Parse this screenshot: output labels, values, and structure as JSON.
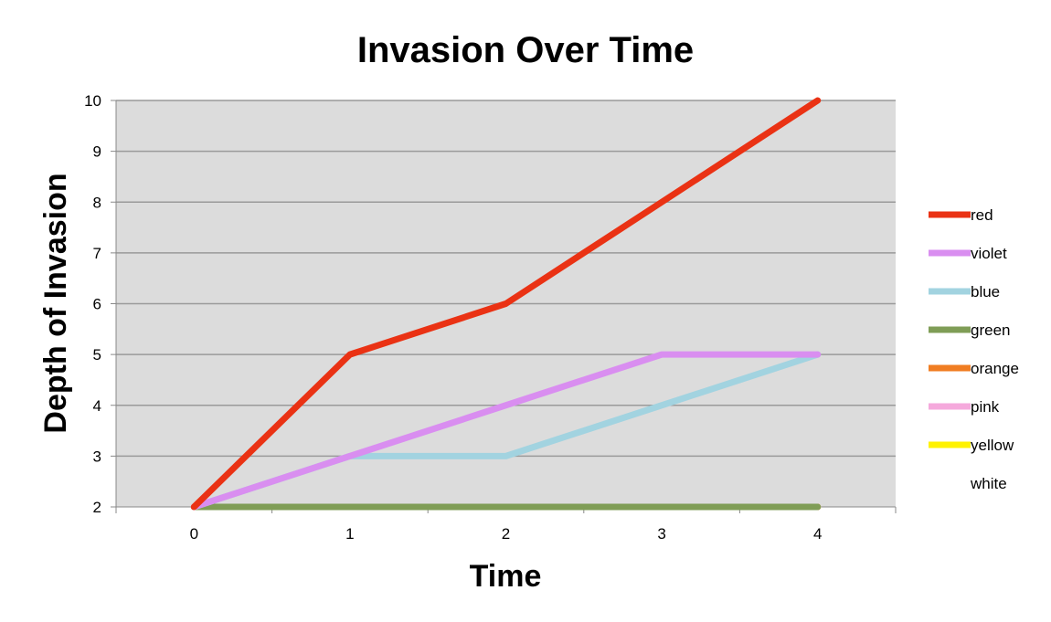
{
  "chart_data": {
    "type": "line",
    "title": "Invasion Over Time",
    "xlabel": "Time",
    "ylabel": "Depth of Invasion",
    "x": [
      0,
      1,
      2,
      3,
      4
    ],
    "x_ticks": [
      "0",
      "1",
      "2",
      "3",
      "4"
    ],
    "ylim": [
      2,
      10
    ],
    "y_ticks": [
      "2",
      "3",
      "4",
      "5",
      "6",
      "7",
      "8",
      "9",
      "10"
    ],
    "grid": true,
    "plot_background": "#dcdcdc",
    "legend_position": "right",
    "series": [
      {
        "name": "red",
        "color": "#ea3214",
        "values": [
          2,
          5,
          6,
          8,
          10
        ]
      },
      {
        "name": "violet",
        "color": "#d98ef0",
        "values": [
          2,
          3,
          4,
          5,
          5
        ]
      },
      {
        "name": "blue",
        "color": "#a2d3e0",
        "values": [
          2,
          3,
          3,
          4,
          5
        ]
      },
      {
        "name": "green",
        "color": "#7f9d56",
        "values": [
          2,
          2,
          2,
          2,
          2
        ]
      },
      {
        "name": "orange",
        "color": "#f07d22",
        "values": [
          2,
          2,
          2,
          2,
          2
        ]
      },
      {
        "name": "pink",
        "color": "#f5a9dc",
        "values": [
          2,
          2,
          2,
          2,
          2
        ]
      },
      {
        "name": "yellow",
        "color": "#fff200",
        "values": [
          2,
          2,
          2,
          2,
          2
        ]
      },
      {
        "name": "white",
        "color": "#ffffff",
        "values": [
          2,
          2,
          2,
          2,
          2
        ]
      }
    ]
  }
}
